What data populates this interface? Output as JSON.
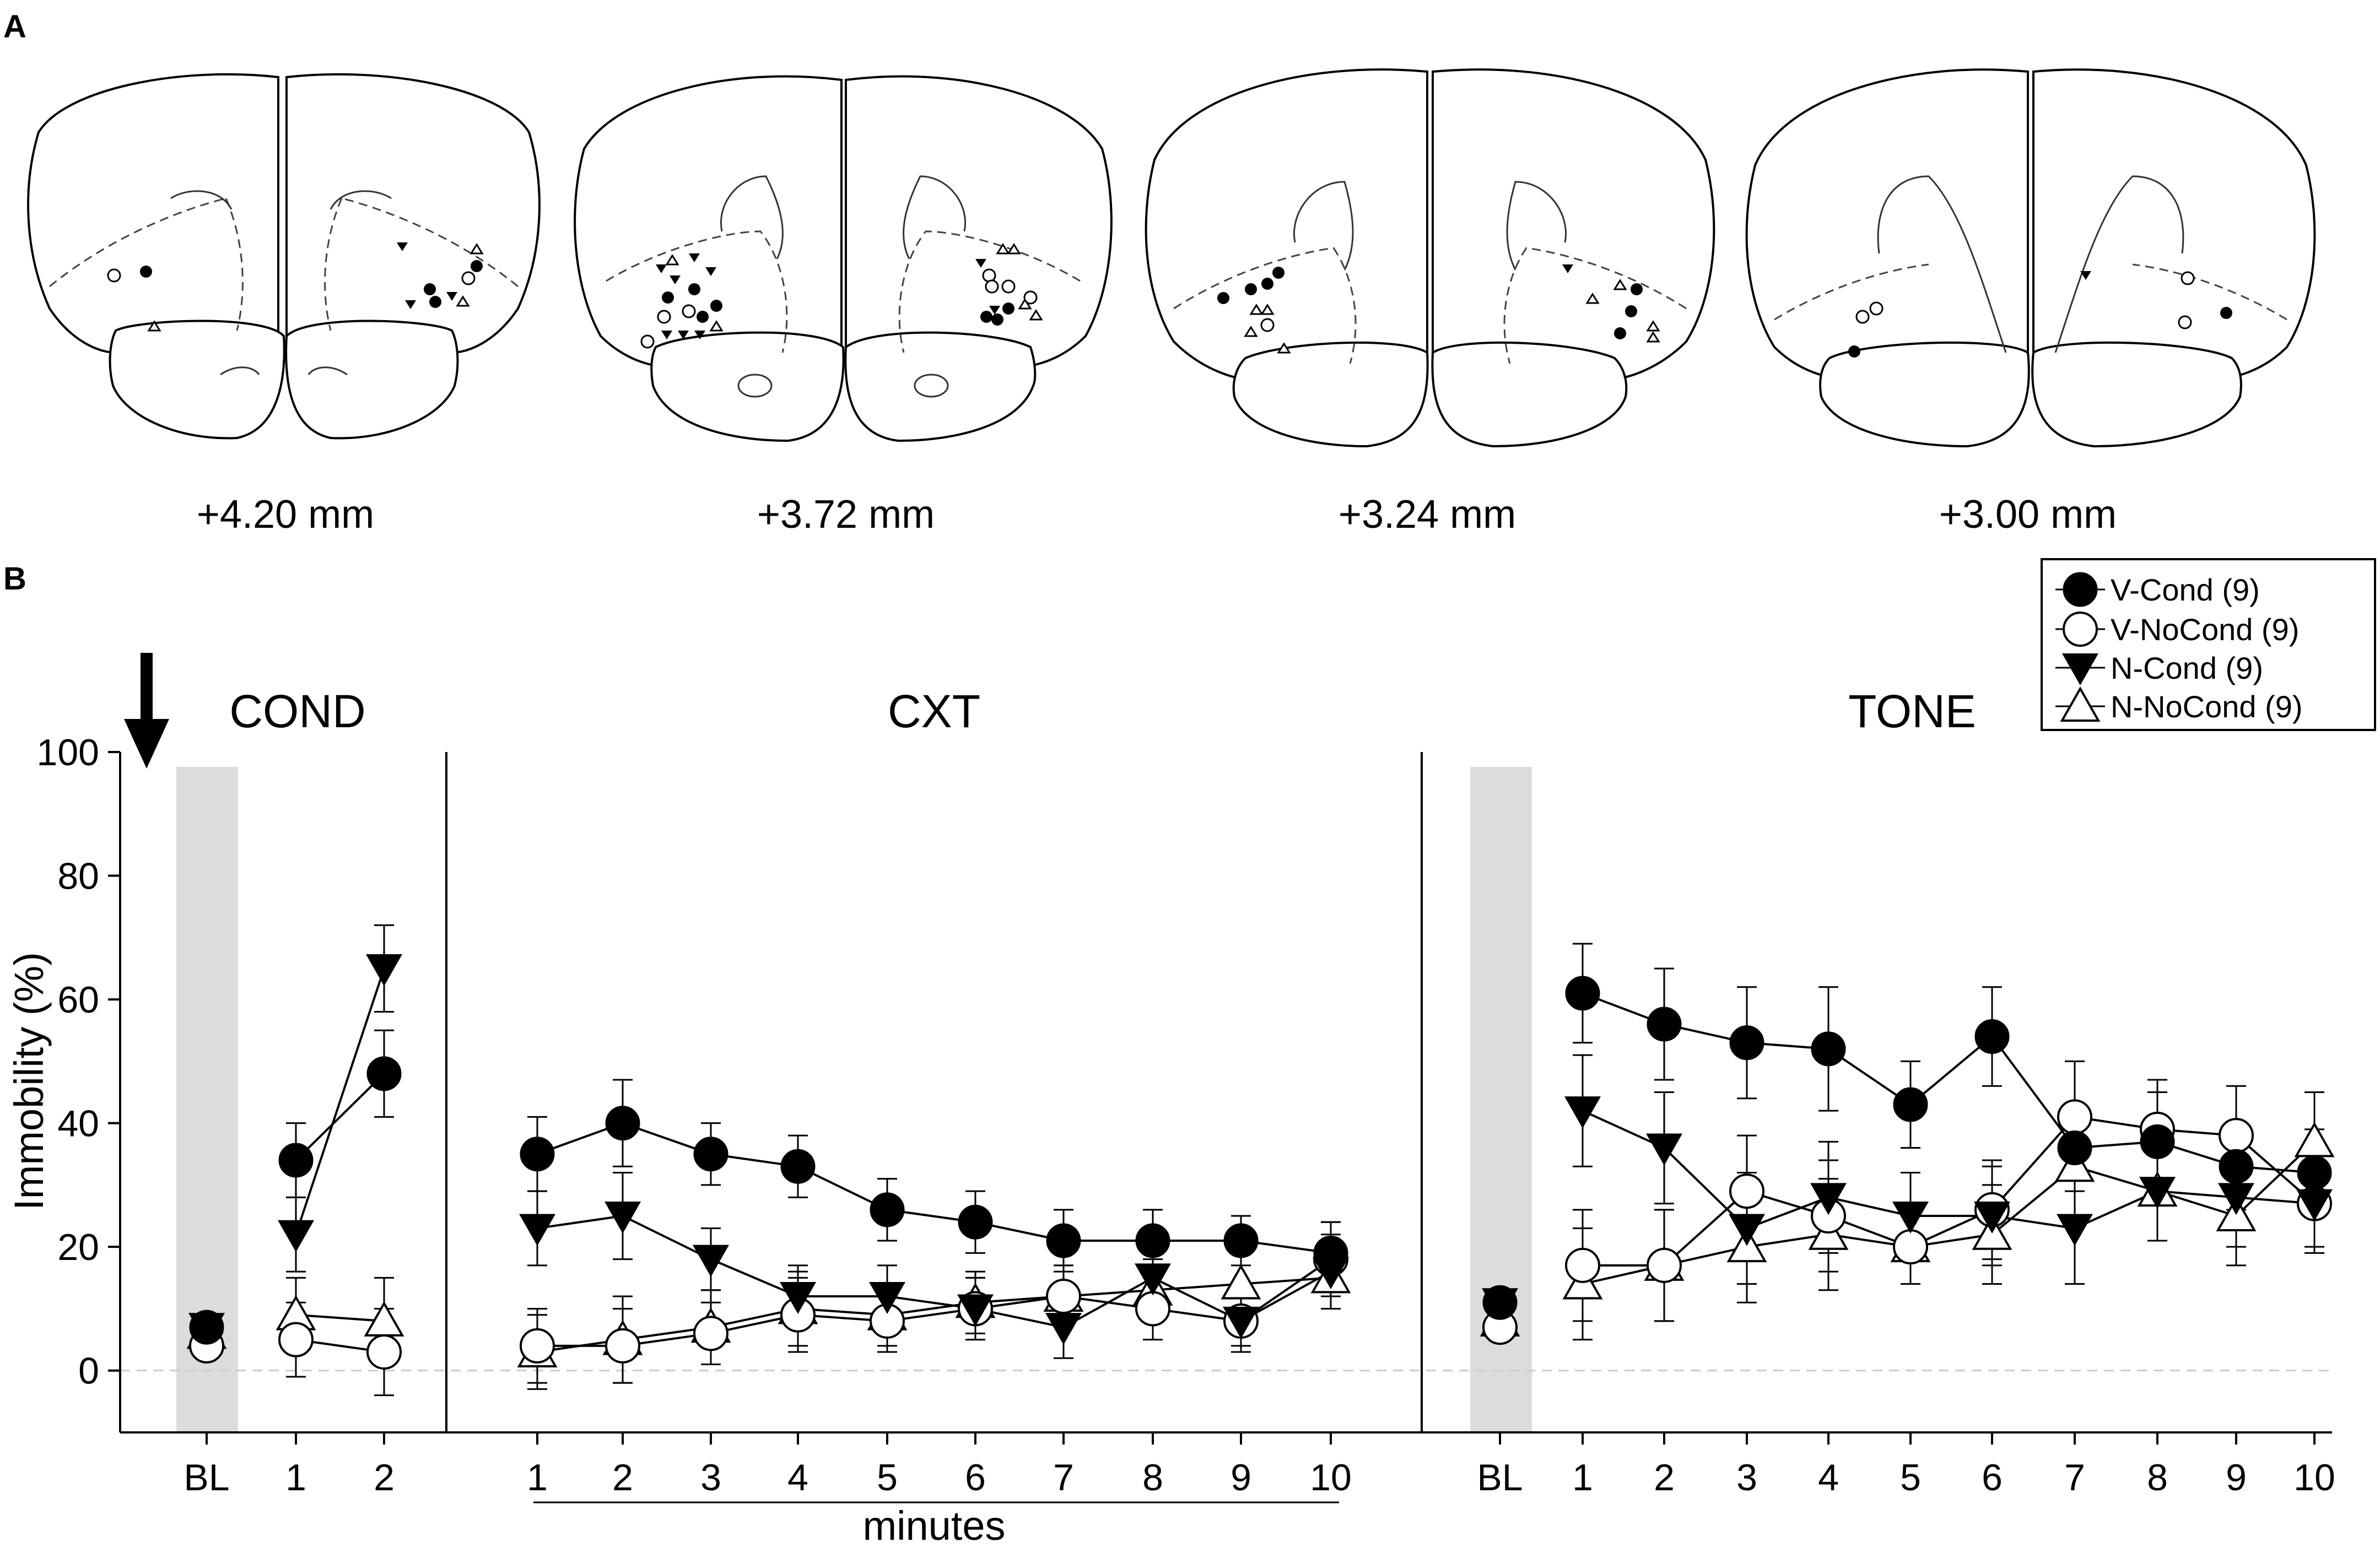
{
  "panel_a": {
    "label": "A",
    "sections": [
      "+4.20 mm",
      "+3.72 mm",
      "+3.24 mm",
      "+3.00 mm"
    ]
  },
  "panel_b": {
    "label": "B"
  },
  "chart_data": {
    "type": "line",
    "ylabel": "Immobility (%)",
    "xlabel": "minutes",
    "ylim": [
      -10,
      100
    ],
    "yticks": [
      0,
      20,
      40,
      60,
      80,
      100
    ],
    "phases": [
      {
        "name": "COND",
        "categories": [
          "BL",
          "1",
          "2"
        ]
      },
      {
        "name": "CXT",
        "categories": [
          "1",
          "2",
          "3",
          "4",
          "5",
          "6",
          "7",
          "8",
          "9",
          "10"
        ]
      },
      {
        "name": "TONE",
        "categories": [
          "BL",
          "1",
          "2",
          "3",
          "4",
          "5",
          "6",
          "7",
          "8",
          "9",
          "10"
        ]
      }
    ],
    "series": [
      {
        "name": "V-Cond (9)",
        "marker": "filled-circle",
        "values": {
          "COND": [
            7,
            34,
            48
          ],
          "CXT": [
            35,
            40,
            35,
            33,
            26,
            24,
            21,
            21,
            21,
            19
          ],
          "TONE": [
            11,
            61,
            56,
            53,
            52,
            43,
            54,
            36,
            37,
            33,
            32
          ]
        },
        "errors": {
          "COND": [
            1,
            6,
            7
          ],
          "CXT": [
            6,
            7,
            5,
            5,
            5,
            5,
            5,
            5,
            4,
            5
          ],
          "TONE": [
            1,
            8,
            9,
            9,
            10,
            7,
            8,
            7,
            8,
            7,
            7
          ]
        }
      },
      {
        "name": "V-NoCond (9)",
        "marker": "open-circle",
        "values": {
          "COND": [
            4,
            5,
            3
          ],
          "CXT": [
            4,
            4,
            6,
            9,
            8,
            10,
            12,
            10,
            8,
            18
          ],
          "TONE": [
            7,
            17,
            17,
            29,
            25,
            20,
            26,
            41,
            39,
            38,
            27
          ]
        },
        "errors": {
          "COND": [
            1,
            6,
            7
          ],
          "CXT": [
            6,
            6,
            5,
            6,
            5,
            5,
            5,
            5,
            4,
            6
          ],
          "TONE": [
            1,
            9,
            9,
            9,
            9,
            6,
            8,
            9,
            8,
            8,
            7
          ]
        }
      },
      {
        "name": "N-Cond (9)",
        "marker": "filled-down-triangle",
        "values": {
          "COND": [
            7,
            22,
            65
          ],
          "CXT": [
            23,
            25,
            18,
            12,
            12,
            10,
            7,
            15,
            8,
            16
          ],
          "TONE": [
            11,
            42,
            36,
            23,
            28,
            25,
            25,
            23,
            29,
            28,
            27
          ]
        },
        "errors": {
          "COND": [
            1,
            6,
            7
          ],
          "CXT": [
            6,
            7,
            5,
            5,
            5,
            5,
            5,
            5,
            5,
            6
          ],
          "TONE": [
            1,
            9,
            9,
            9,
            9,
            7,
            8,
            9,
            8,
            8,
            8
          ]
        }
      },
      {
        "name": "N-NoCond (9)",
        "marker": "open-up-triangle",
        "values": {
          "COND": [
            6,
            9,
            8
          ],
          "CXT": [
            3,
            5,
            7,
            10,
            9,
            11,
            12,
            13,
            14,
            15
          ],
          "TONE": [
            8,
            14,
            17,
            20,
            22,
            20,
            22,
            33,
            29,
            25,
            37
          ]
        },
        "errors": {
          "COND": [
            1,
            6,
            7
          ],
          "CXT": [
            6,
            7,
            6,
            6,
            5,
            5,
            5,
            5,
            5,
            5
          ],
          "TONE": [
            1,
            9,
            9,
            9,
            9,
            6,
            8,
            9,
            8,
            8,
            8
          ]
        }
      }
    ],
    "annotations": [
      "baseline shaded (BL)",
      "arrow marks shock/onset before COND"
    ]
  },
  "colors": {
    "bl_shade": "#dcdcdc",
    "zero_line": "#cccccc",
    "ink": "#000000"
  }
}
